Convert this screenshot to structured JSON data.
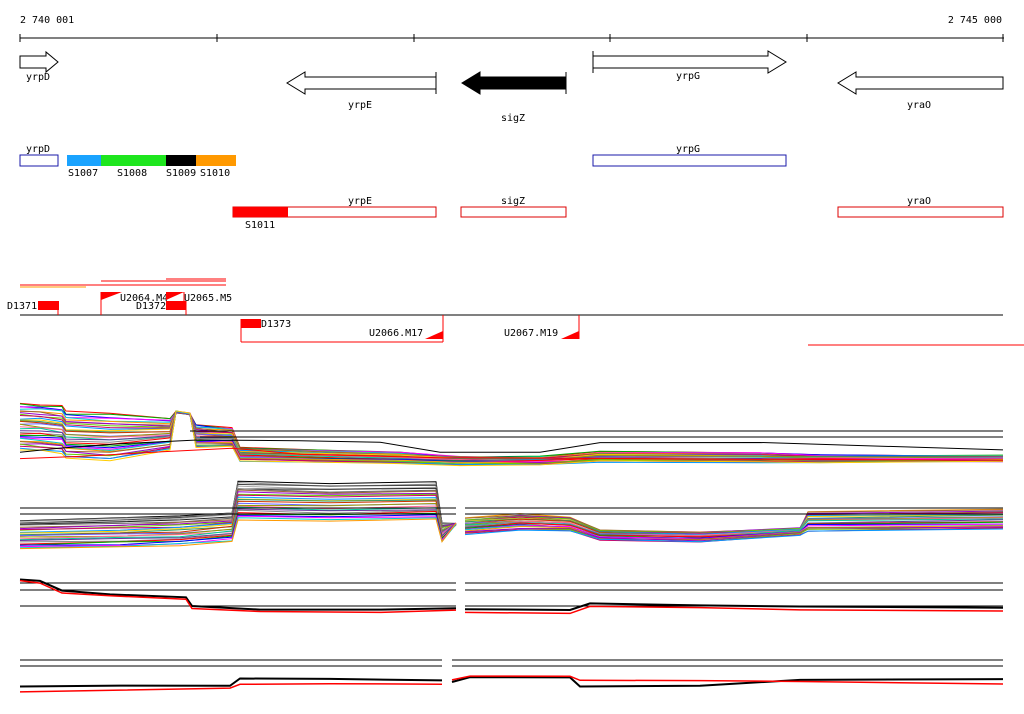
{
  "ruler": {
    "start_label": "2 740 001",
    "end_label": "2 745 000"
  },
  "colors": {
    "annotation_outline": "#1a1aaa",
    "transcript_outline": "#dd0000",
    "segment_fill": "#ff0000",
    "primary_track_line": "#ff0000",
    "reference_line": "#000000",
    "highlight_gene": "#000000",
    "segment_palette": [
      "#1aa3ff",
      "#1ee61e",
      "#000000",
      "#ff9900"
    ]
  },
  "genes": [
    {
      "label": "yrpD",
      "strand": "+"
    },
    {
      "label": "yrpE",
      "strand": "-"
    },
    {
      "label": "sigZ",
      "strand": "-",
      "highlighted": true
    },
    {
      "label": "yrpG",
      "strand": "+"
    },
    {
      "label": "yraO",
      "strand": "-"
    }
  ],
  "annotation_track": {
    "boxes": [
      {
        "label": "yrpD"
      },
      {
        "label": "yrpG"
      }
    ],
    "segments": [
      {
        "label": "S1007",
        "icon": "cyan-segment"
      },
      {
        "label": "S1008",
        "icon": "green-segment"
      },
      {
        "label": "S1009",
        "icon": "black-segment"
      },
      {
        "label": "S1010",
        "icon": "orange-segment"
      }
    ]
  },
  "transcript_track": {
    "boxes": [
      {
        "label": "yrpE"
      },
      {
        "label": "sigZ"
      },
      {
        "label": "yraO"
      }
    ],
    "segments": [
      {
        "label": "S1011"
      }
    ]
  },
  "features": [
    {
      "label": "D1371"
    },
    {
      "label": "U2064.M4"
    },
    {
      "label": "U2065.M5"
    },
    {
      "label": "D1372"
    },
    {
      "label": "D1373"
    },
    {
      "label": "U2066.M17"
    },
    {
      "label": "U2067.M19"
    }
  ],
  "profile_panels": [
    {
      "name": "multi-condition-profile-top"
    },
    {
      "name": "multi-condition-profile-bottom"
    },
    {
      "name": "strand-profile-1"
    },
    {
      "name": "strand-profile-2"
    }
  ]
}
